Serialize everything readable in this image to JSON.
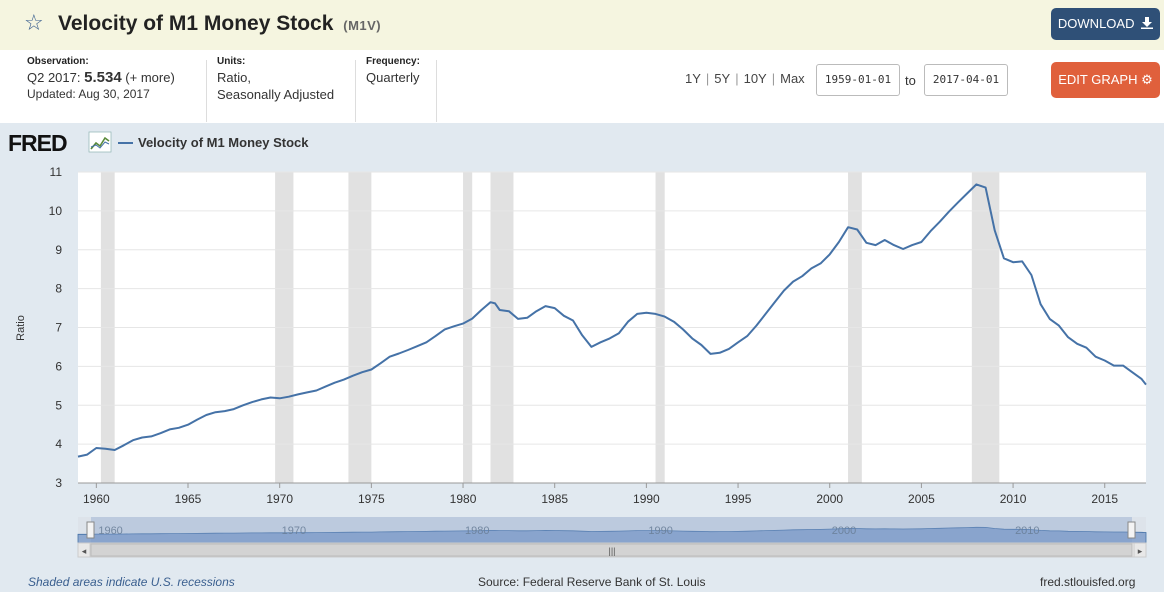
{
  "header": {
    "title": "Velocity of M1 Money Stock",
    "series_id": "(M1V)",
    "download_label": "DOWNLOAD"
  },
  "meta": {
    "observation_label": "Observation:",
    "observation_period": "Q2 2017:",
    "observation_value": "5.534",
    "observation_more": "(+ more)",
    "updated": "Updated: Aug 30, 2017",
    "units_label": "Units:",
    "units_line1": "Ratio,",
    "units_line2": "Seasonally Adjusted",
    "frequency_label": "Frequency:",
    "frequency_value": "Quarterly"
  },
  "controls": {
    "range_1y": "1Y",
    "range_5y": "5Y",
    "range_10y": "10Y",
    "range_max": "Max",
    "start_date": "1959-01-01",
    "to_label": "to",
    "end_date": "2017-04-01",
    "edit_label": "EDIT GRAPH"
  },
  "footer": {
    "recession_note": "Shaded areas indicate U.S. recessions",
    "source": "Source: Federal Reserve Bank of St. Louis",
    "site": "fred.stlouisfed.org"
  },
  "colors": {
    "line": "#4572a7",
    "recession": "#e1e1e1",
    "navigator_fill": "#8fa9cf",
    "download_bg": "#2f5077",
    "edit_bg": "#e0603c"
  },
  "chart_data": {
    "type": "line",
    "title": "Velocity of M1 Money Stock",
    "legend": "Velocity of M1 Money Stock",
    "brand": "FRED",
    "xlabel": "",
    "ylabel": "Ratio",
    "xlim": [
      1959.0,
      2017.25
    ],
    "ylim": [
      3,
      11
    ],
    "y_ticks": [
      3,
      4,
      5,
      6,
      7,
      8,
      9,
      10,
      11
    ],
    "x_ticks": [
      1960,
      1965,
      1970,
      1975,
      1980,
      1985,
      1990,
      1995,
      2000,
      2005,
      2010,
      2015
    ],
    "x_tick_labels": [
      "1960",
      "1965",
      "1970",
      "1975",
      "1980",
      "1985",
      "1990",
      "1995",
      "2000",
      "2005",
      "2010",
      "2015"
    ],
    "navigator_labels": [
      "1960",
      "1970",
      "1980",
      "1990",
      "2000",
      "2010"
    ],
    "recessions": [
      [
        1960.25,
        1961.0
      ],
      [
        1969.75,
        1970.75
      ],
      [
        1973.75,
        1975.0
      ],
      [
        1980.0,
        1980.5
      ],
      [
        1981.5,
        1982.75
      ],
      [
        1990.5,
        1991.0
      ],
      [
        2001.0,
        2001.75
      ],
      [
        2007.75,
        2009.25
      ]
    ],
    "series": [
      {
        "name": "Velocity of M1 Money Stock",
        "x": [
          1959.0,
          1959.5,
          1960.0,
          1960.5,
          1961.0,
          1961.5,
          1962.0,
          1962.5,
          1963.0,
          1963.5,
          1964.0,
          1964.5,
          1965.0,
          1965.5,
          1966.0,
          1966.5,
          1967.0,
          1967.5,
          1968.0,
          1968.5,
          1969.0,
          1969.5,
          1970.0,
          1970.5,
          1971.0,
          1971.5,
          1972.0,
          1972.5,
          1973.0,
          1973.5,
          1974.0,
          1974.5,
          1975.0,
          1975.5,
          1976.0,
          1976.5,
          1977.0,
          1977.5,
          1978.0,
          1978.5,
          1979.0,
          1979.5,
          1980.0,
          1980.5,
          1981.0,
          1981.25,
          1981.5,
          1981.75,
          1982.0,
          1982.5,
          1983.0,
          1983.5,
          1984.0,
          1984.5,
          1985.0,
          1985.5,
          1986.0,
          1986.5,
          1987.0,
          1987.5,
          1988.0,
          1988.5,
          1989.0,
          1989.5,
          1990.0,
          1990.5,
          1991.0,
          1991.5,
          1992.0,
          1992.5,
          1993.0,
          1993.5,
          1994.0,
          1994.5,
          1995.0,
          1995.5,
          1996.0,
          1996.5,
          1997.0,
          1997.5,
          1998.0,
          1998.5,
          1999.0,
          1999.5,
          2000.0,
          2000.5,
          2001.0,
          2001.5,
          2002.0,
          2002.5,
          2003.0,
          2003.5,
          2004.0,
          2004.5,
          2005.0,
          2005.5,
          2006.0,
          2006.5,
          2007.0,
          2007.5,
          2008.0,
          2008.5,
          2009.0,
          2009.5,
          2010.0,
          2010.5,
          2011.0,
          2011.5,
          2012.0,
          2012.5,
          2013.0,
          2013.5,
          2014.0,
          2014.5,
          2015.0,
          2015.5,
          2016.0,
          2016.5,
          2017.0,
          2017.25
        ],
        "values": [
          3.68,
          3.73,
          3.9,
          3.88,
          3.85,
          3.97,
          4.1,
          4.17,
          4.2,
          4.28,
          4.38,
          4.42,
          4.5,
          4.63,
          4.75,
          4.82,
          4.85,
          4.9,
          5.0,
          5.08,
          5.15,
          5.2,
          5.18,
          5.22,
          5.28,
          5.33,
          5.38,
          5.48,
          5.58,
          5.66,
          5.76,
          5.85,
          5.92,
          6.08,
          6.25,
          6.33,
          6.42,
          6.52,
          6.62,
          6.78,
          6.95,
          7.03,
          7.1,
          7.23,
          7.45,
          7.55,
          7.65,
          7.62,
          7.45,
          7.42,
          7.22,
          7.25,
          7.42,
          7.55,
          7.5,
          7.3,
          7.18,
          6.8,
          6.5,
          6.62,
          6.72,
          6.85,
          7.15,
          7.35,
          7.38,
          7.35,
          7.28,
          7.15,
          6.95,
          6.72,
          6.55,
          6.32,
          6.35,
          6.45,
          6.62,
          6.78,
          7.05,
          7.35,
          7.65,
          7.95,
          8.18,
          8.32,
          8.52,
          8.65,
          8.88,
          9.2,
          9.58,
          9.52,
          9.18,
          9.12,
          9.25,
          9.12,
          9.02,
          9.12,
          9.2,
          9.48,
          9.72,
          9.98,
          10.22,
          10.45,
          10.68,
          10.6,
          9.5,
          8.78,
          8.68,
          8.7,
          8.35,
          7.6,
          7.22,
          7.05,
          6.75,
          6.58,
          6.48,
          6.25,
          6.15,
          6.02,
          6.02,
          5.85,
          5.68,
          5.53
        ]
      }
    ]
  }
}
